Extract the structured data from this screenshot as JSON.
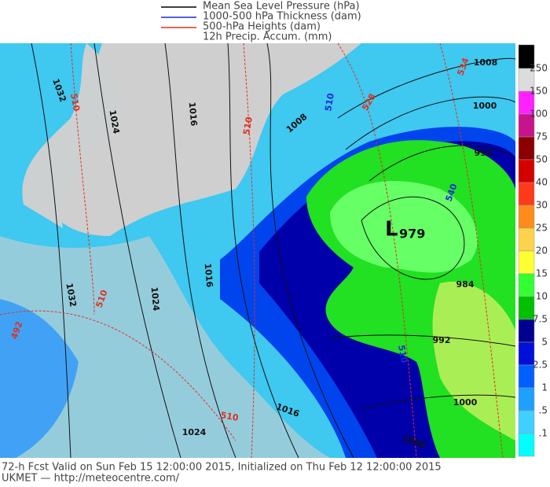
{
  "legend": [
    "Mean Sea Level Pressure (hPa)",
    "1000-500 hPa Thickness (dam)",
    "500-hPa Heights (dam)",
    "12h Precip. Accum. (mm)"
  ],
  "colorbar": {
    "labels": [
      "250",
      "150",
      "100",
      "75",
      "50",
      "40",
      "30",
      "25",
      "20",
      "15",
      "10",
      "7.5",
      "5",
      "2.5",
      "1",
      ".5",
      ".1"
    ]
  },
  "low": {
    "letter": "L",
    "pressure": "979"
  },
  "contour_labels": [
    "1032",
    "510",
    "1024",
    "1016",
    "510",
    "1008",
    "510",
    "528",
    "534",
    "1008",
    "1000",
    "992",
    "540",
    "984",
    "992",
    "510",
    "1000",
    "1032",
    "510",
    "1024",
    "1016",
    "492",
    "510",
    "1024",
    "1016",
    "1000"
  ],
  "footer": {
    "line1": "72-h Fcst Valid on Sun Feb 15 12:00:00 2015, Initialized on Thu Feb 12 12:00:00 2015",
    "line2": "UKMET  — http://meteocentre.com/"
  }
}
